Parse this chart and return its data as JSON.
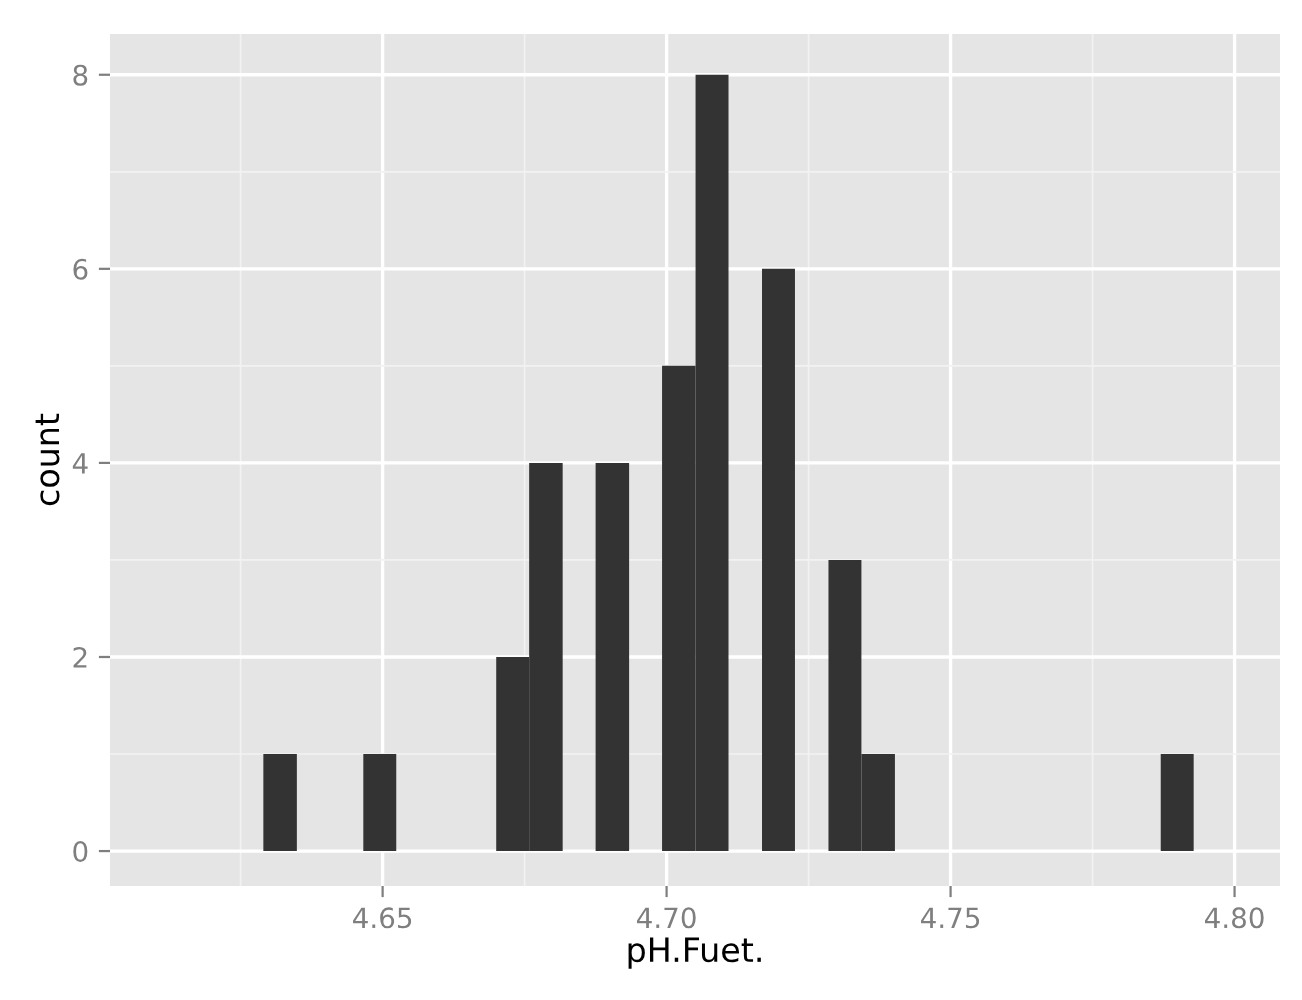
{
  "chart_data": {
    "type": "histogram",
    "xlabel": "pH.Fuet.",
    "ylabel": "count",
    "color": "#333333",
    "bins": [
      4.629,
      4.6349,
      4.6466,
      4.6524,
      4.67,
      4.6758,
      4.6817,
      4.6875,
      4.6934,
      4.6992,
      4.7051,
      4.7109,
      4.7168,
      4.7226,
      4.7285,
      4.7343,
      4.7402,
      4.787,
      4.7928
    ],
    "values": [
      1,
      0,
      1,
      0,
      2,
      4,
      0,
      4,
      0,
      5,
      8,
      0,
      6,
      0,
      3,
      1,
      0,
      1
    ],
    "xlim": [
      4.602,
      4.808
    ],
    "ylim": [
      -0.36,
      8.42
    ],
    "xticks": [
      {
        "value": 4.65,
        "label": "4.65"
      },
      {
        "value": 4.7,
        "label": "4.70"
      },
      {
        "value": 4.75,
        "label": "4.75"
      },
      {
        "value": 4.8,
        "label": "4.80"
      }
    ],
    "yticks": [
      0,
      2,
      4,
      6,
      8
    ],
    "grid": true
  }
}
